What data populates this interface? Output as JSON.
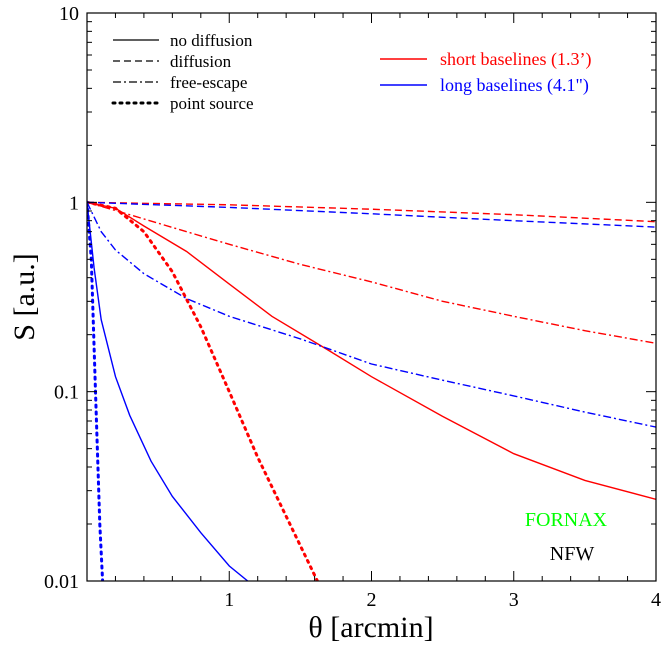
{
  "chart_data": {
    "type": "line",
    "title": "",
    "xlabel": "θ  [arcmin]",
    "ylabel": "S [a.u.]",
    "xlim": [
      0,
      4
    ],
    "ylim": [
      0.01,
      10
    ],
    "yscale": "log",
    "x_ticks": [
      {
        "value": 1,
        "label": "1"
      },
      {
        "value": 2,
        "label": "2"
      },
      {
        "value": 3,
        "label": "3"
      },
      {
        "value": 4,
        "label": "4"
      }
    ],
    "y_ticks": [
      {
        "value": 0.01,
        "label": "0.01"
      },
      {
        "value": 0.1,
        "label": "0.1"
      },
      {
        "value": 1,
        "label": "1"
      },
      {
        "value": 10,
        "label": "10"
      }
    ],
    "style_legend": [
      {
        "label": "no diffusion",
        "dash": "solid"
      },
      {
        "label": "diffusion",
        "dash": "dashed"
      },
      {
        "label": "free-escape",
        "dash": "dashdot"
      },
      {
        "label": "point source",
        "dash": "dotted"
      }
    ],
    "color_legend": [
      {
        "label": "short baselines (1.3’)",
        "color": "#ff0000"
      },
      {
        "label": "long baselines (4.1\")",
        "color": "#0000ff"
      }
    ],
    "annotations": [
      {
        "text": "FORNAX",
        "color": "#00ff00"
      },
      {
        "text": "NFW",
        "color": "#000000"
      }
    ],
    "series": [
      {
        "name": "short baselines - no diffusion",
        "color": "#ff0000",
        "dash": "solid",
        "points": [
          [
            0,
            1
          ],
          [
            0.2,
            0.93
          ],
          [
            0.4,
            0.75
          ],
          [
            0.7,
            0.55
          ],
          [
            1.0,
            0.37
          ],
          [
            1.3,
            0.25
          ],
          [
            1.7,
            0.165
          ],
          [
            2.0,
            0.12
          ],
          [
            2.5,
            0.074
          ],
          [
            3.0,
            0.047
          ],
          [
            3.5,
            0.034
          ],
          [
            4.0,
            0.027
          ]
        ]
      },
      {
        "name": "short baselines - diffusion",
        "color": "#ff0000",
        "dash": "dashed",
        "points": [
          [
            0,
            1
          ],
          [
            1.0,
            0.97
          ],
          [
            2.0,
            0.92
          ],
          [
            3.0,
            0.86
          ],
          [
            4.0,
            0.79
          ]
        ]
      },
      {
        "name": "short baselines - free-escape",
        "color": "#ff0000",
        "dash": "dashdot",
        "points": [
          [
            0,
            1
          ],
          [
            0.3,
            0.86
          ],
          [
            0.7,
            0.7
          ],
          [
            1.0,
            0.6
          ],
          [
            1.5,
            0.47
          ],
          [
            2.0,
            0.38
          ],
          [
            2.5,
            0.3
          ],
          [
            3.0,
            0.25
          ],
          [
            3.5,
            0.21
          ],
          [
            4.0,
            0.18
          ]
        ]
      },
      {
        "name": "short baselines - point source",
        "color": "#ff0000",
        "dash": "dotted",
        "points": [
          [
            0,
            1
          ],
          [
            0.2,
            0.93
          ],
          [
            0.4,
            0.7
          ],
          [
            0.6,
            0.43
          ],
          [
            0.8,
            0.22
          ],
          [
            1.0,
            0.1
          ],
          [
            1.2,
            0.045
          ],
          [
            1.4,
            0.022
          ],
          [
            1.62,
            0.01
          ]
        ]
      },
      {
        "name": "long baselines - no diffusion",
        "color": "#0000ff",
        "dash": "solid",
        "points": [
          [
            0,
            1
          ],
          [
            0.05,
            0.45
          ],
          [
            0.1,
            0.24
          ],
          [
            0.2,
            0.12
          ],
          [
            0.3,
            0.075
          ],
          [
            0.45,
            0.043
          ],
          [
            0.6,
            0.028
          ],
          [
            0.8,
            0.018
          ],
          [
            1.0,
            0.012
          ],
          [
            1.13,
            0.01
          ]
        ]
      },
      {
        "name": "long baselines - diffusion",
        "color": "#0000ff",
        "dash": "dashed",
        "points": [
          [
            0,
            1
          ],
          [
            1.0,
            0.94
          ],
          [
            2.0,
            0.87
          ],
          [
            3.0,
            0.8
          ],
          [
            4.0,
            0.74
          ]
        ]
      },
      {
        "name": "long baselines - free-escape",
        "color": "#0000ff",
        "dash": "dashdot",
        "points": [
          [
            0,
            1
          ],
          [
            0.1,
            0.7
          ],
          [
            0.2,
            0.56
          ],
          [
            0.4,
            0.42
          ],
          [
            0.7,
            0.31
          ],
          [
            1.0,
            0.25
          ],
          [
            1.5,
            0.19
          ],
          [
            2.0,
            0.14
          ],
          [
            2.5,
            0.115
          ],
          [
            3.0,
            0.095
          ],
          [
            3.5,
            0.078
          ],
          [
            4.0,
            0.065
          ]
        ]
      },
      {
        "name": "long baselines - point source",
        "color": "#0000ff",
        "dash": "dotted",
        "points": [
          [
            0,
            1
          ],
          [
            0.03,
            0.5
          ],
          [
            0.06,
            0.1
          ],
          [
            0.09,
            0.02
          ],
          [
            0.11,
            0.01
          ]
        ]
      }
    ]
  }
}
